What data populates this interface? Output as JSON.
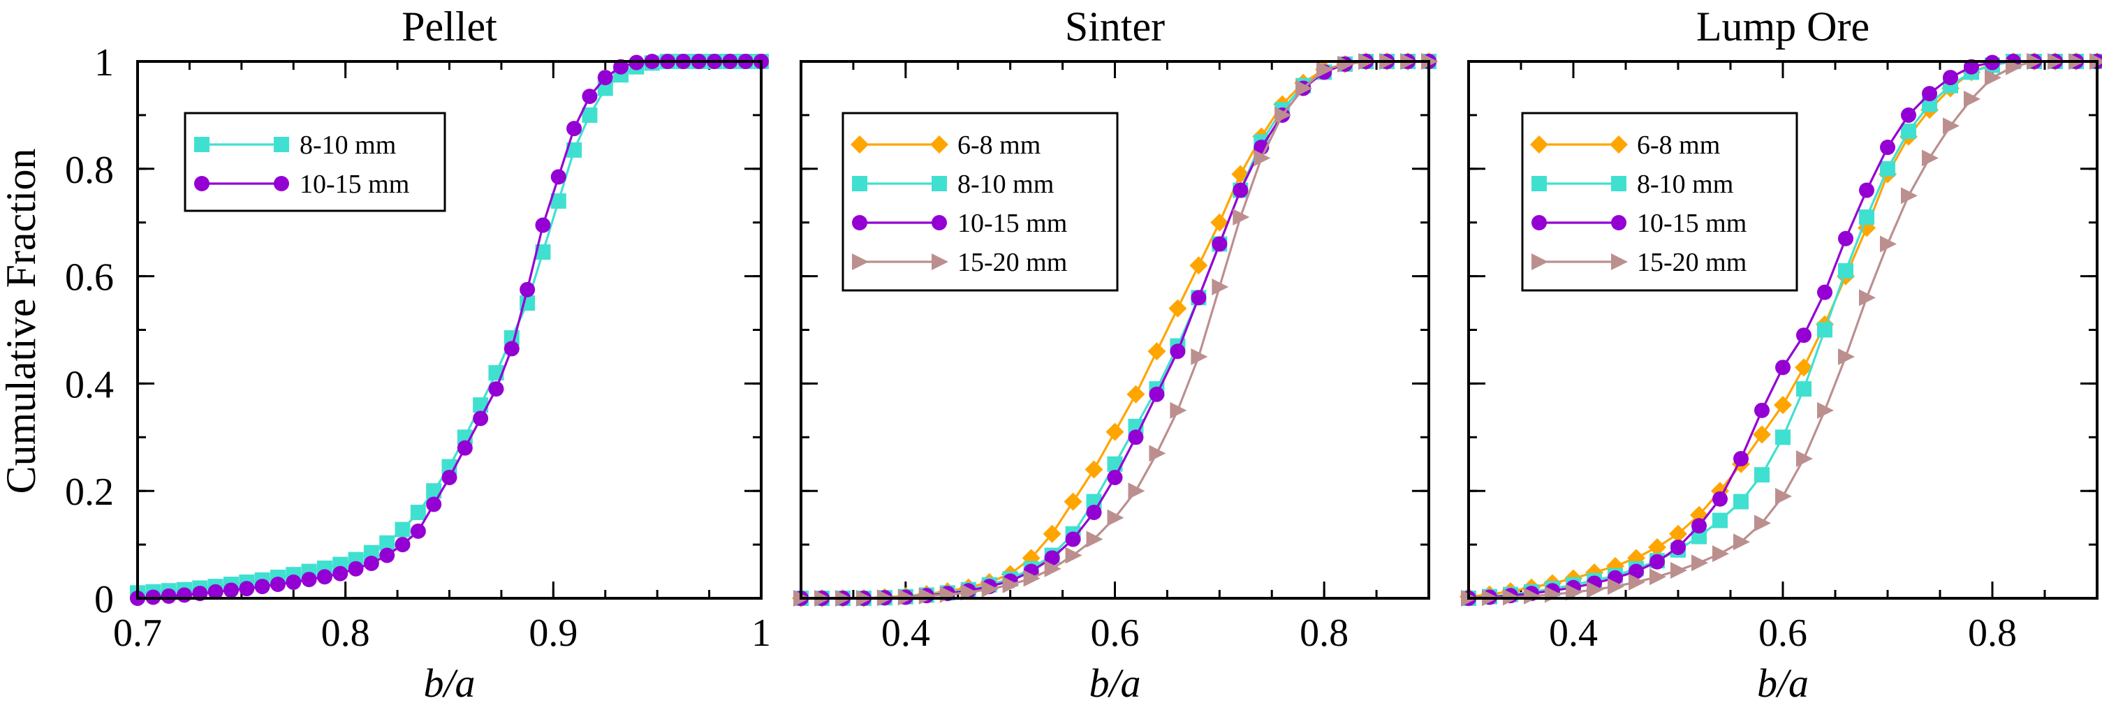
{
  "figure": {
    "ylabel": "Cumulative Fraction"
  },
  "colors": {
    "6-8 mm": "#FFA500",
    "8-10 mm": "#40E0D0",
    "10-15 mm": "#9400D3",
    "15-20 mm": "#BC8F8F"
  },
  "chart_data": [
    {
      "type": "line",
      "title": "Pellet",
      "xlabel": "b/a",
      "ylabel": "Cumulative Fraction",
      "xlim": [
        0.7,
        1.0
      ],
      "ylim": [
        0,
        1
      ],
      "xticks": [
        0.7,
        0.8,
        0.9,
        1.0
      ],
      "xtick_labels": [
        "0.7",
        "0.8",
        "0.9",
        "1"
      ],
      "yticks": [
        0,
        0.2,
        0.4,
        0.6,
        0.8,
        1.0
      ],
      "ytick_labels": [
        "0",
        "0.2",
        "0.4",
        "0.6",
        "0.8",
        "1"
      ],
      "legend_position": "upper-left",
      "series": [
        {
          "name": "8-10 mm",
          "marker": "square",
          "x": [
            0.7,
            0.7075,
            0.715,
            0.7225,
            0.73,
            0.7375,
            0.745,
            0.7525,
            0.76,
            0.7675,
            0.775,
            0.7825,
            0.79,
            0.7975,
            0.805,
            0.8125,
            0.82,
            0.8275,
            0.835,
            0.8425,
            0.85,
            0.8575,
            0.865,
            0.8725,
            0.88,
            0.8875,
            0.895,
            0.9025,
            0.91,
            0.9175,
            0.925,
            0.9325,
            0.94,
            0.9475,
            0.955,
            0.9625,
            0.97,
            0.9775,
            0.985,
            0.9925,
            1.0
          ],
          "y": [
            0.01,
            0.012,
            0.014,
            0.016,
            0.019,
            0.022,
            0.026,
            0.03,
            0.034,
            0.039,
            0.044,
            0.05,
            0.056,
            0.063,
            0.072,
            0.085,
            0.103,
            0.128,
            0.16,
            0.2,
            0.245,
            0.3,
            0.36,
            0.42,
            0.485,
            0.55,
            0.645,
            0.74,
            0.835,
            0.9,
            0.95,
            0.975,
            0.99,
            0.997,
            1.0,
            1.0,
            1.0,
            1.0,
            1.0,
            1.0,
            1.0
          ]
        },
        {
          "name": "10-15 mm",
          "marker": "circle",
          "x": [
            0.7,
            0.7075,
            0.715,
            0.7225,
            0.73,
            0.7375,
            0.745,
            0.7525,
            0.76,
            0.7675,
            0.775,
            0.7825,
            0.79,
            0.7975,
            0.805,
            0.8125,
            0.82,
            0.8275,
            0.835,
            0.8425,
            0.85,
            0.8575,
            0.865,
            0.8725,
            0.88,
            0.8875,
            0.895,
            0.9025,
            0.91,
            0.9175,
            0.925,
            0.9325,
            0.94,
            0.9475,
            0.955,
            0.9625,
            0.97,
            0.9775,
            0.985,
            0.9925,
            1.0
          ],
          "y": [
            0.0,
            0.002,
            0.004,
            0.006,
            0.009,
            0.012,
            0.015,
            0.018,
            0.022,
            0.026,
            0.03,
            0.035,
            0.04,
            0.046,
            0.055,
            0.065,
            0.08,
            0.1,
            0.125,
            0.175,
            0.225,
            0.28,
            0.335,
            0.39,
            0.465,
            0.575,
            0.695,
            0.785,
            0.875,
            0.935,
            0.97,
            0.99,
            0.998,
            1.0,
            1.0,
            1.0,
            1.0,
            1.0,
            1.0,
            1.0,
            1.0
          ]
        }
      ]
    },
    {
      "type": "line",
      "title": "Sinter",
      "xlabel": "b/a",
      "ylabel": "",
      "xlim": [
        0.3,
        0.9
      ],
      "ylim": [
        0,
        1
      ],
      "xticks": [
        0.4,
        0.6,
        0.8
      ],
      "xtick_labels": [
        "0.4",
        "0.6",
        "0.8"
      ],
      "yticks": [
        0,
        0.2,
        0.4,
        0.6,
        0.8,
        1.0
      ],
      "ytick_labels": [],
      "legend_position": "upper-left",
      "series": [
        {
          "name": "6-8 mm",
          "marker": "diamond",
          "x": [
            0.3,
            0.32,
            0.34,
            0.36,
            0.38,
            0.4,
            0.42,
            0.44,
            0.46,
            0.48,
            0.5,
            0.52,
            0.54,
            0.56,
            0.58,
            0.6,
            0.62,
            0.64,
            0.66,
            0.68,
            0.7,
            0.72,
            0.74,
            0.76,
            0.78,
            0.8,
            0.82,
            0.84,
            0.86,
            0.88,
            0.9
          ],
          "y": [
            0.0,
            0.0,
            0.0,
            0.0,
            0.002,
            0.004,
            0.008,
            0.013,
            0.02,
            0.03,
            0.045,
            0.075,
            0.12,
            0.18,
            0.24,
            0.31,
            0.38,
            0.46,
            0.54,
            0.62,
            0.7,
            0.79,
            0.86,
            0.92,
            0.96,
            0.985,
            0.995,
            1.0,
            1.0,
            1.0,
            1.0
          ]
        },
        {
          "name": "8-10 mm",
          "marker": "square",
          "x": [
            0.3,
            0.32,
            0.34,
            0.36,
            0.38,
            0.4,
            0.42,
            0.44,
            0.46,
            0.48,
            0.5,
            0.52,
            0.54,
            0.56,
            0.58,
            0.6,
            0.62,
            0.64,
            0.66,
            0.68,
            0.7,
            0.72,
            0.74,
            0.76,
            0.78,
            0.8,
            0.82,
            0.84,
            0.86,
            0.88,
            0.9
          ],
          "y": [
            0.0,
            0.0,
            0.0,
            0.0,
            0.001,
            0.003,
            0.006,
            0.01,
            0.016,
            0.025,
            0.036,
            0.055,
            0.08,
            0.12,
            0.18,
            0.25,
            0.32,
            0.39,
            0.47,
            0.56,
            0.66,
            0.76,
            0.85,
            0.91,
            0.955,
            0.98,
            0.995,
            1.0,
            1.0,
            1.0,
            1.0
          ]
        },
        {
          "name": "10-15 mm",
          "marker": "circle",
          "x": [
            0.3,
            0.32,
            0.34,
            0.36,
            0.38,
            0.4,
            0.42,
            0.44,
            0.46,
            0.48,
            0.5,
            0.52,
            0.54,
            0.56,
            0.58,
            0.6,
            0.62,
            0.64,
            0.66,
            0.68,
            0.7,
            0.72,
            0.74,
            0.76,
            0.78,
            0.8,
            0.82,
            0.84,
            0.86,
            0.88,
            0.9
          ],
          "y": [
            0.0,
            0.0,
            0.0,
            0.0,
            0.001,
            0.002,
            0.005,
            0.009,
            0.014,
            0.022,
            0.032,
            0.05,
            0.075,
            0.11,
            0.16,
            0.225,
            0.3,
            0.38,
            0.46,
            0.56,
            0.66,
            0.76,
            0.84,
            0.9,
            0.95,
            0.98,
            0.995,
            1.0,
            1.0,
            1.0,
            1.0
          ]
        },
        {
          "name": "15-20 mm",
          "marker": "triangle-right",
          "x": [
            0.3,
            0.32,
            0.34,
            0.36,
            0.38,
            0.4,
            0.42,
            0.44,
            0.46,
            0.48,
            0.5,
            0.52,
            0.54,
            0.56,
            0.58,
            0.6,
            0.62,
            0.64,
            0.66,
            0.68,
            0.7,
            0.72,
            0.74,
            0.76,
            0.78,
            0.8,
            0.82,
            0.84,
            0.86,
            0.88,
            0.9
          ],
          "y": [
            0.0,
            0.0,
            0.0,
            0.0,
            0.001,
            0.002,
            0.004,
            0.007,
            0.011,
            0.017,
            0.025,
            0.037,
            0.055,
            0.08,
            0.11,
            0.15,
            0.2,
            0.27,
            0.35,
            0.45,
            0.58,
            0.71,
            0.82,
            0.9,
            0.95,
            0.985,
            0.995,
            1.0,
            1.0,
            1.0,
            1.0
          ]
        }
      ]
    },
    {
      "type": "line",
      "title": "Lump Ore",
      "xlabel": "b/a",
      "ylabel": "",
      "xlim": [
        0.3,
        0.9
      ],
      "ylim": [
        0,
        1
      ],
      "xticks": [
        0.4,
        0.6,
        0.8
      ],
      "xtick_labels": [
        "0.4",
        "0.6",
        "0.8"
      ],
      "yticks": [
        0,
        0.2,
        0.4,
        0.6,
        0.8,
        1.0
      ],
      "ytick_labels": [],
      "legend_position": "upper-left",
      "series": [
        {
          "name": "6-8 mm",
          "marker": "diamond",
          "x": [
            0.3,
            0.32,
            0.34,
            0.36,
            0.38,
            0.4,
            0.42,
            0.44,
            0.46,
            0.48,
            0.5,
            0.52,
            0.54,
            0.56,
            0.58,
            0.6,
            0.62,
            0.64,
            0.66,
            0.68,
            0.7,
            0.72,
            0.74,
            0.76,
            0.78,
            0.8,
            0.82,
            0.84,
            0.86,
            0.88,
            0.9
          ],
          "y": [
            0.003,
            0.007,
            0.013,
            0.02,
            0.028,
            0.037,
            0.048,
            0.06,
            0.075,
            0.095,
            0.12,
            0.155,
            0.2,
            0.25,
            0.305,
            0.36,
            0.43,
            0.51,
            0.6,
            0.69,
            0.79,
            0.86,
            0.91,
            0.95,
            0.98,
            0.995,
            1.0,
            1.0,
            1.0,
            1.0,
            1.0
          ]
        },
        {
          "name": "8-10 mm",
          "marker": "square",
          "x": [
            0.3,
            0.32,
            0.34,
            0.36,
            0.38,
            0.4,
            0.42,
            0.44,
            0.46,
            0.48,
            0.5,
            0.52,
            0.54,
            0.56,
            0.58,
            0.6,
            0.62,
            0.64,
            0.66,
            0.68,
            0.7,
            0.72,
            0.74,
            0.76,
            0.78,
            0.8,
            0.82,
            0.84,
            0.86,
            0.88,
            0.9
          ],
          "y": [
            0.0,
            0.003,
            0.007,
            0.012,
            0.018,
            0.025,
            0.033,
            0.042,
            0.055,
            0.07,
            0.09,
            0.115,
            0.145,
            0.18,
            0.23,
            0.3,
            0.39,
            0.5,
            0.61,
            0.71,
            0.8,
            0.87,
            0.92,
            0.955,
            0.98,
            0.993,
            1.0,
            1.0,
            1.0,
            1.0,
            1.0
          ]
        },
        {
          "name": "10-15 mm",
          "marker": "circle",
          "x": [
            0.3,
            0.32,
            0.34,
            0.36,
            0.38,
            0.4,
            0.42,
            0.44,
            0.46,
            0.48,
            0.5,
            0.52,
            0.54,
            0.56,
            0.58,
            0.6,
            0.62,
            0.64,
            0.66,
            0.68,
            0.7,
            0.72,
            0.74,
            0.76,
            0.78,
            0.8,
            0.82,
            0.84,
            0.86,
            0.88,
            0.9
          ],
          "y": [
            0.0,
            0.002,
            0.005,
            0.009,
            0.014,
            0.02,
            0.028,
            0.038,
            0.05,
            0.068,
            0.095,
            0.135,
            0.185,
            0.26,
            0.35,
            0.43,
            0.49,
            0.57,
            0.67,
            0.76,
            0.84,
            0.9,
            0.94,
            0.97,
            0.99,
            0.998,
            1.0,
            1.0,
            1.0,
            1.0,
            1.0
          ]
        },
        {
          "name": "15-20 mm",
          "marker": "triangle-right",
          "x": [
            0.3,
            0.32,
            0.34,
            0.36,
            0.38,
            0.4,
            0.42,
            0.44,
            0.46,
            0.48,
            0.5,
            0.52,
            0.54,
            0.56,
            0.58,
            0.6,
            0.62,
            0.64,
            0.66,
            0.68,
            0.7,
            0.72,
            0.74,
            0.76,
            0.78,
            0.8,
            0.82,
            0.84,
            0.86,
            0.88,
            0.9
          ],
          "y": [
            0.0,
            0.001,
            0.002,
            0.004,
            0.007,
            0.011,
            0.016,
            0.022,
            0.03,
            0.04,
            0.052,
            0.066,
            0.083,
            0.105,
            0.14,
            0.19,
            0.26,
            0.35,
            0.45,
            0.56,
            0.66,
            0.75,
            0.82,
            0.88,
            0.93,
            0.97,
            0.99,
            1.0,
            1.0,
            1.0,
            1.0
          ]
        }
      ]
    }
  ]
}
